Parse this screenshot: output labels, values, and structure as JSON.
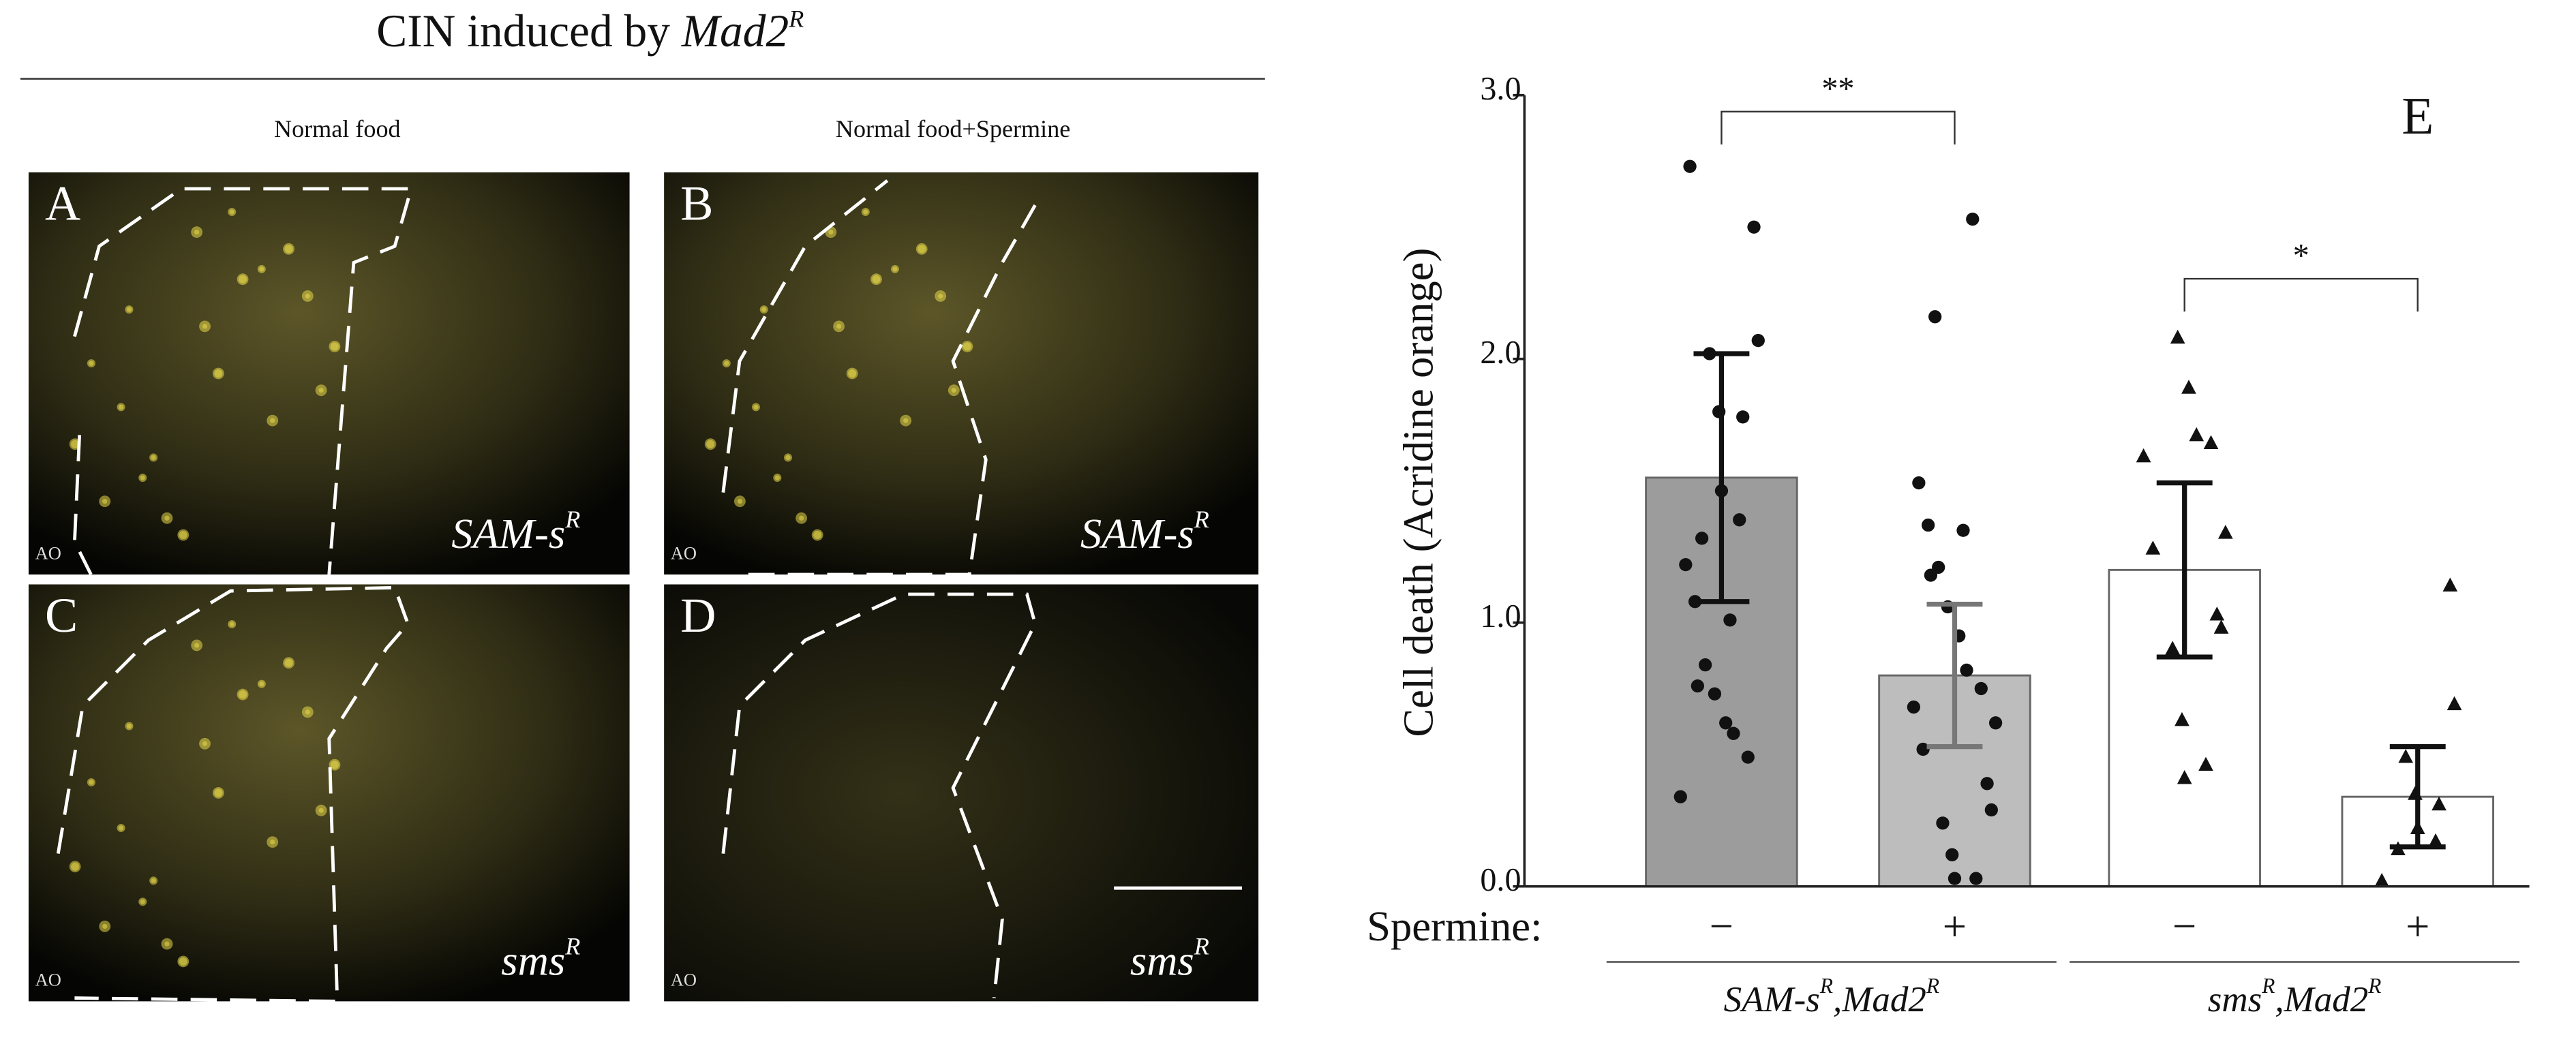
{
  "figure": {
    "title": {
      "text": "CIN induced by ",
      "italic": "Mad2",
      "sup": "R"
    },
    "columns": [
      "Normal food",
      "Normal food+Spermine"
    ],
    "panels": [
      {
        "letter": "A",
        "genotype": "SAM-s",
        "sup": "R",
        "stain": "AO"
      },
      {
        "letter": "B",
        "genotype": "SAM-s",
        "sup": "R",
        "stain": "AO"
      },
      {
        "letter": "C",
        "genotype": "sms",
        "sup": "R",
        "stain": "AO"
      },
      {
        "letter": "D",
        "genotype": "sms",
        "sup": "R",
        "stain": "AO"
      }
    ]
  },
  "chart_data": {
    "type": "bar",
    "panel_label": "E",
    "ylabel": "Cell death (Acridine orange)",
    "ylim": [
      0,
      3
    ],
    "yticks": [
      {
        "value": 0,
        "label": "0.0"
      },
      {
        "value": 1,
        "label": "1.0"
      },
      {
        "value": 2,
        "label": "2.0"
      },
      {
        "value": 3,
        "label": "3.0"
      }
    ],
    "category_axis_label": "Spermine:",
    "categories": [
      "−",
      "+",
      "−",
      "+"
    ],
    "values": [
      1.55,
      0.8,
      1.2,
      0.34
    ],
    "errors": [
      0.47,
      0.27,
      0.33,
      0.19
    ],
    "colors": [
      "#9c9c9c",
      "#bdbdbd",
      "#ffffff",
      "#ffffff"
    ],
    "markers": [
      "circle",
      "circle",
      "triangle",
      "triangle"
    ],
    "points": [
      [
        2.73,
        2.5,
        2.07,
        2.02,
        1.8,
        1.78,
        1.5,
        1.39,
        1.32,
        1.22,
        1.08,
        1.01,
        0.84,
        0.76,
        0.73,
        0.62,
        0.58,
        0.49,
        0.34
      ],
      [
        2.53,
        2.16,
        1.53,
        1.37,
        1.35,
        1.21,
        1.18,
        1.06,
        0.95,
        0.82,
        0.75,
        0.68,
        0.62,
        0.52,
        0.39,
        0.29,
        0.24,
        0.12,
        0.03,
        0.03
      ],
      [
        2.08,
        1.89,
        1.71,
        1.68,
        1.63,
        1.34,
        1.28,
        1.03,
        0.98,
        0.9,
        0.63,
        0.46,
        0.41
      ],
      [
        1.14,
        0.69,
        0.49,
        0.35,
        0.31,
        0.22,
        0.17,
        0.14,
        0.02
      ]
    ],
    "groups": [
      {
        "parts": [
          "SAM-s",
          "R",
          ",Mad2",
          "R"
        ],
        "from": 0,
        "to": 1
      },
      {
        "parts": [
          "sms",
          "R",
          ",Mad2",
          "R"
        ],
        "from": 2,
        "to": 3
      }
    ],
    "significance": [
      {
        "from": 0,
        "to": 1,
        "label": "**"
      },
      {
        "from": 2,
        "to": 3,
        "label": "*"
      }
    ]
  }
}
